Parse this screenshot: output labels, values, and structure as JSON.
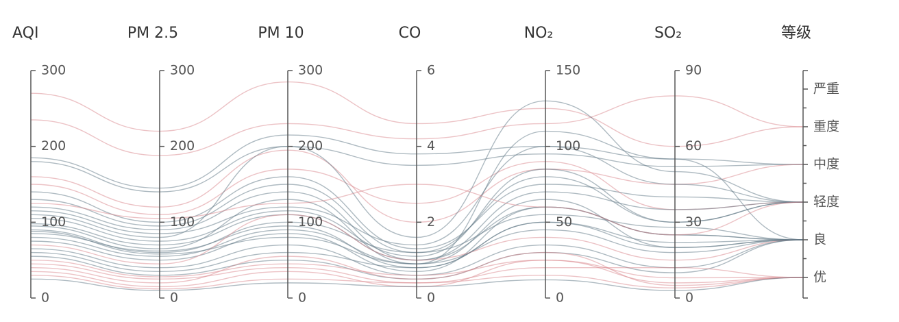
{
  "chart_data": {
    "type": "parallel",
    "axes": [
      {
        "name": "AQI",
        "ylim": [
          0,
          300
        ],
        "yticks": [
          0,
          100,
          200,
          300
        ]
      },
      {
        "name": "PM 2.5",
        "ylim": [
          0,
          300
        ],
        "yticks": [
          0,
          100,
          200,
          300
        ]
      },
      {
        "name": "PM 10",
        "ylim": [
          0,
          300
        ],
        "yticks": [
          0,
          100,
          200,
          300
        ]
      },
      {
        "name": "CO",
        "ylim": [
          0,
          6
        ],
        "yticks": [
          0,
          2,
          4,
          6
        ]
      },
      {
        "name": "NO₂",
        "ylim": [
          0,
          150
        ],
        "yticks": [
          0,
          50,
          100,
          150
        ]
      },
      {
        "name": "SO₂",
        "ylim": [
          0,
          90
        ],
        "yticks": [
          0,
          30,
          60,
          90
        ]
      },
      {
        "name": "等级",
        "categories": [
          "严重",
          "重度",
          "中度",
          "轻度",
          "良",
          "优"
        ]
      }
    ],
    "lines": [
      {
        "color": "#d9868c",
        "values": [
          270,
          220,
          285,
          4.6,
          125,
          60,
          "重度"
        ]
      },
      {
        "color": "#d9868c",
        "values": [
          235,
          188,
          230,
          4.2,
          115,
          80,
          "重度"
        ]
      },
      {
        "color": "#5d7684",
        "values": [
          185,
          145,
          215,
          3.8,
          100,
          55,
          "中度"
        ]
      },
      {
        "color": "#5d7684",
        "values": [
          180,
          140,
          200,
          3.5,
          95,
          52,
          "中度"
        ]
      },
      {
        "color": "#d9868c",
        "values": [
          160,
          120,
          195,
          2.0,
          85,
          45,
          "中度"
        ]
      },
      {
        "color": "#d9868c",
        "values": [
          150,
          110,
          170,
          2.5,
          90,
          35,
          "轻度"
        ]
      },
      {
        "color": "#5d7684",
        "values": [
          140,
          100,
          160,
          1.3,
          75,
          40,
          "轻度"
        ]
      },
      {
        "color": "#5d7684",
        "values": [
          130,
          95,
          150,
          1.2,
          80,
          30,
          "轻度"
        ]
      },
      {
        "color": "#5d7684",
        "values": [
          120,
          90,
          140,
          1.0,
          70,
          35,
          "轻度"
        ]
      },
      {
        "color": "#5d7684",
        "values": [
          115,
          85,
          120,
          1.4,
          100,
          45,
          "轻度"
        ]
      },
      {
        "color": "#5d7684",
        "values": [
          105,
          75,
          115,
          1.1,
          85,
          30,
          "轻度"
        ]
      },
      {
        "color": "#5d7684",
        "values": [
          98,
          70,
          110,
          1.0,
          60,
          25,
          "良"
        ]
      },
      {
        "color": "#5d7684",
        "values": [
          95,
          65,
          130,
          0.9,
          65,
          20,
          "良"
        ]
      },
      {
        "color": "#5d7684",
        "values": [
          90,
          60,
          100,
          1.2,
          55,
          28,
          "良"
        ]
      },
      {
        "color": "#5d7684",
        "values": [
          85,
          62,
          95,
          0.8,
          50,
          22,
          "良"
        ]
      },
      {
        "color": "#5d7684",
        "values": [
          80,
          55,
          90,
          0.9,
          45,
          18,
          "良"
        ]
      },
      {
        "color": "#5d7684",
        "values": [
          75,
          50,
          85,
          0.7,
          60,
          25,
          "良"
        ]
      },
      {
        "color": "#d9868c",
        "values": [
          70,
          45,
          110,
          1.0,
          40,
          15,
          "良"
        ]
      },
      {
        "color": "#5d7684",
        "values": [
          65,
          40,
          70,
          0.6,
          35,
          12,
          "良"
        ]
      },
      {
        "color": "#5d7684",
        "values": [
          60,
          35,
          60,
          0.8,
          50,
          20,
          "良"
        ]
      },
      {
        "color": "#5d7684",
        "values": [
          55,
          30,
          50,
          0.5,
          30,
          10,
          "良"
        ]
      },
      {
        "color": "#d9868c",
        "values": [
          50,
          28,
          45,
          0.6,
          25,
          8,
          "优"
        ]
      },
      {
        "color": "#d9868c",
        "values": [
          45,
          25,
          40,
          0.4,
          20,
          12,
          "优"
        ]
      },
      {
        "color": "#d9868c",
        "values": [
          40,
          20,
          55,
          0.5,
          30,
          5,
          "优"
        ]
      },
      {
        "color": "#d9868c",
        "values": [
          35,
          15,
          35,
          0.3,
          25,
          6,
          "优"
        ]
      },
      {
        "color": "#d9868c",
        "values": [
          30,
          12,
          25,
          0.4,
          15,
          4,
          "优"
        ]
      },
      {
        "color": "#5d7684",
        "values": [
          25,
          10,
          20,
          0.3,
          12,
          3,
          "优"
        ]
      },
      {
        "color": "#5d7684",
        "values": [
          110,
          80,
          200,
          1.6,
          130,
          50,
          "轻度"
        ]
      },
      {
        "color": "#5d7684",
        "values": [
          88,
          58,
          80,
          0.9,
          110,
          55,
          "良"
        ]
      },
      {
        "color": "#d9868c",
        "values": [
          125,
          105,
          125,
          3.0,
          60,
          25,
          "轻度"
        ]
      }
    ]
  }
}
